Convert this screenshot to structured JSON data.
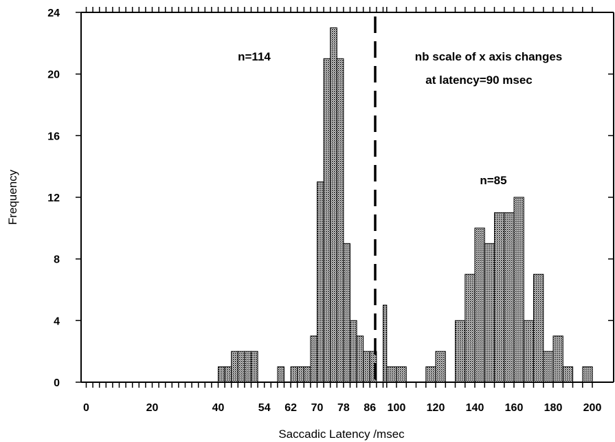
{
  "chart_data": {
    "type": "bar",
    "ylabel": "Frequency",
    "xlabel": "Saccadic Latency /msec",
    "ylim": [
      0,
      24
    ],
    "y_ticks": [
      0,
      4,
      8,
      12,
      16,
      20,
      24
    ],
    "x_tick_labels": [
      "0",
      "20",
      "40",
      "54",
      "62",
      "70",
      "78",
      "86",
      "100",
      "120",
      "140",
      "160",
      "180",
      "200"
    ],
    "bin_width_below_90_msec": 2,
    "bin_width_from_90_msec": 5,
    "scale_change_at_msec": 90,
    "fill_pattern": "fine black dot stipple",
    "annotations": [
      {
        "text": "n=114"
      },
      {
        "text": "nb scale of x axis changes"
      },
      {
        "text": "at latency=90 msec"
      },
      {
        "text": "n=85"
      }
    ],
    "series": [
      {
        "bins": [
          {
            "x": 40,
            "value": 1
          },
          {
            "x": 42,
            "value": 1
          },
          {
            "x": 44,
            "value": 2
          },
          {
            "x": 46,
            "value": 2
          },
          {
            "x": 48,
            "value": 2
          },
          {
            "x": 50,
            "value": 2
          },
          {
            "x": 58,
            "value": 1
          },
          {
            "x": 62,
            "value": 1
          },
          {
            "x": 64,
            "value": 1
          },
          {
            "x": 66,
            "value": 1
          },
          {
            "x": 68,
            "value": 3
          },
          {
            "x": 70,
            "value": 13
          },
          {
            "x": 72,
            "value": 21
          },
          {
            "x": 74,
            "value": 23
          },
          {
            "x": 76,
            "value": 21
          },
          {
            "x": 78,
            "value": 9
          },
          {
            "x": 80,
            "value": 4
          },
          {
            "x": 82,
            "value": 3
          },
          {
            "x": 84,
            "value": 2
          },
          {
            "x": 86,
            "value": 2
          },
          {
            "x": 90,
            "value": 5
          },
          {
            "x": 95,
            "value": 1
          },
          {
            "x": 100,
            "value": 1
          },
          {
            "x": 115,
            "value": 1
          },
          {
            "x": 120,
            "value": 2
          },
          {
            "x": 130,
            "value": 4
          },
          {
            "x": 135,
            "value": 7
          },
          {
            "x": 140,
            "value": 10
          },
          {
            "x": 145,
            "value": 9
          },
          {
            "x": 150,
            "value": 11
          },
          {
            "x": 155,
            "value": 11
          },
          {
            "x": 160,
            "value": 12
          },
          {
            "x": 165,
            "value": 4
          },
          {
            "x": 170,
            "value": 7
          },
          {
            "x": 175,
            "value": 2
          },
          {
            "x": 180,
            "value": 3
          },
          {
            "x": 185,
            "value": 1
          },
          {
            "x": 195,
            "value": 1
          }
        ]
      }
    ]
  }
}
